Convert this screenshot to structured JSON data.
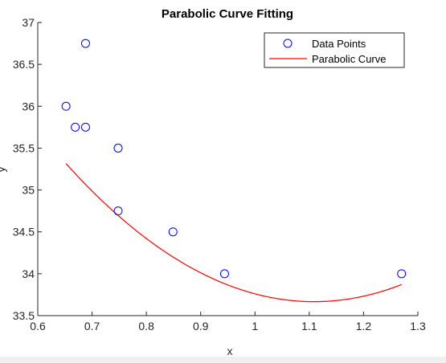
{
  "chart_data": {
    "type": "scatter",
    "title": "Parabolic Curve Fitting",
    "xlabel": "x",
    "ylabel": "y",
    "xlim": [
      0.6,
      1.3
    ],
    "ylim": [
      33.5,
      37
    ],
    "xticks": [
      0.6,
      0.7,
      0.8,
      0.9,
      1,
      1.1,
      1.2,
      1.3
    ],
    "yticks": [
      33.5,
      34,
      34.5,
      35,
      35.5,
      36,
      36.5,
      37
    ],
    "grid": false,
    "legend_position": "top-right",
    "series": [
      {
        "name": "Data Points",
        "kind": "markers",
        "marker": "circle",
        "color": "#0000ff",
        "x": [
          0.652,
          0.669,
          0.688,
          0.688,
          0.748,
          0.748,
          0.849,
          0.944,
          1.27
        ],
        "y": [
          36.0,
          35.75,
          36.75,
          35.75,
          35.5,
          34.75,
          34.5,
          34.0,
          34.0
        ]
      },
      {
        "name": "Parabolic Curve",
        "kind": "line",
        "color": "#ff0000",
        "x_range": [
          0.652,
          1.27
        ],
        "coefficients": {
          "a": 7.9,
          "b": -17.52,
          "c": 43.38
        }
      }
    ]
  }
}
